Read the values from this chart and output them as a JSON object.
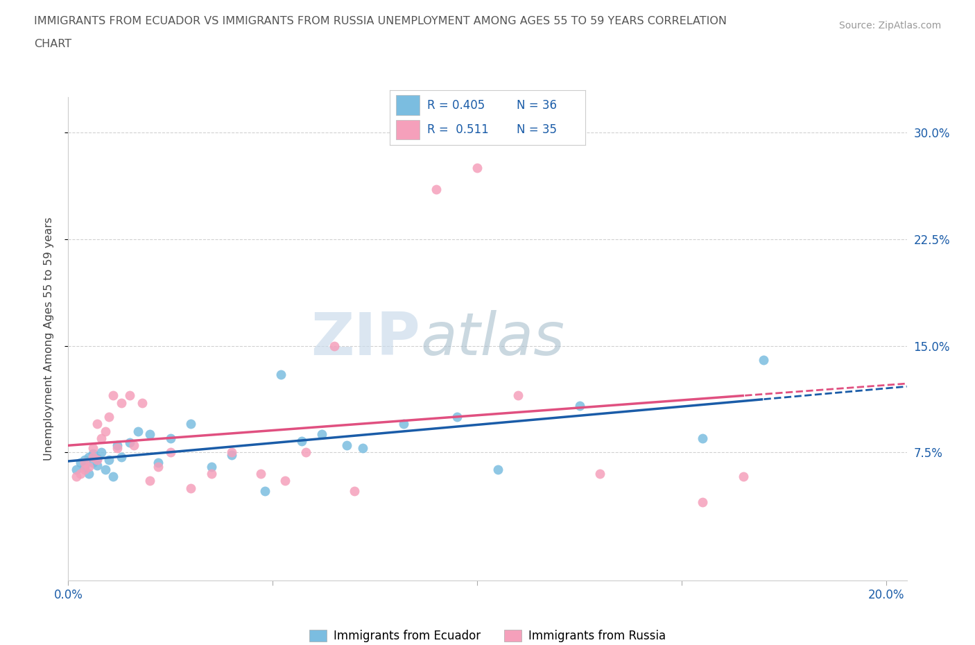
{
  "title_line1": "IMMIGRANTS FROM ECUADOR VS IMMIGRANTS FROM RUSSIA UNEMPLOYMENT AMONG AGES 55 TO 59 YEARS CORRELATION",
  "title_line2": "CHART",
  "source_text": "Source: ZipAtlas.com",
  "ylabel": "Unemployment Among Ages 55 to 59 years",
  "xlim": [
    0.0,
    0.205
  ],
  "ylim": [
    -0.015,
    0.325
  ],
  "xticks": [
    0.0,
    0.05,
    0.1,
    0.15,
    0.2
  ],
  "xticklabels": [
    "0.0%",
    "",
    "",
    "",
    "20.0%"
  ],
  "yticks": [
    0.075,
    0.15,
    0.225,
    0.3
  ],
  "yticklabels": [
    "7.5%",
    "15.0%",
    "22.5%",
    "30.0%"
  ],
  "ecuador_color": "#7bbde0",
  "russia_color": "#f5a0bb",
  "ecuador_line_color": "#1a5ca8",
  "russia_line_color": "#e05080",
  "R_ecuador": 0.405,
  "N_ecuador": 36,
  "R_russia": 0.511,
  "N_russia": 35,
  "ecuador_x": [
    0.002,
    0.003,
    0.004,
    0.004,
    0.005,
    0.005,
    0.006,
    0.006,
    0.007,
    0.007,
    0.008,
    0.009,
    0.01,
    0.011,
    0.012,
    0.013,
    0.015,
    0.017,
    0.02,
    0.022,
    0.025,
    0.03,
    0.035,
    0.04,
    0.048,
    0.052,
    0.057,
    0.062,
    0.068,
    0.072,
    0.082,
    0.095,
    0.105,
    0.125,
    0.155,
    0.17
  ],
  "ecuador_y": [
    0.063,
    0.068,
    0.065,
    0.07,
    0.072,
    0.06,
    0.068,
    0.074,
    0.066,
    0.071,
    0.075,
    0.063,
    0.07,
    0.058,
    0.08,
    0.072,
    0.082,
    0.09,
    0.088,
    0.068,
    0.085,
    0.095,
    0.065,
    0.073,
    0.048,
    0.13,
    0.083,
    0.088,
    0.08,
    0.078,
    0.095,
    0.1,
    0.063,
    0.108,
    0.085,
    0.14
  ],
  "russia_x": [
    0.002,
    0.003,
    0.004,
    0.004,
    0.005,
    0.006,
    0.006,
    0.007,
    0.007,
    0.008,
    0.009,
    0.01,
    0.011,
    0.012,
    0.013,
    0.015,
    0.016,
    0.018,
    0.02,
    0.022,
    0.025,
    0.03,
    0.035,
    0.04,
    0.047,
    0.053,
    0.058,
    0.065,
    0.07,
    0.09,
    0.1,
    0.11,
    0.13,
    0.155,
    0.165
  ],
  "russia_y": [
    0.058,
    0.06,
    0.063,
    0.068,
    0.065,
    0.072,
    0.078,
    0.07,
    0.095,
    0.085,
    0.09,
    0.1,
    0.115,
    0.078,
    0.11,
    0.115,
    0.08,
    0.11,
    0.055,
    0.065,
    0.075,
    0.05,
    0.06,
    0.075,
    0.06,
    0.055,
    0.075,
    0.15,
    0.048,
    0.26,
    0.275,
    0.115,
    0.06,
    0.04,
    0.058
  ],
  "watermark_zip": "ZIP",
  "watermark_atlas": "atlas",
  "background_color": "#ffffff",
  "grid_color": "#cccccc"
}
